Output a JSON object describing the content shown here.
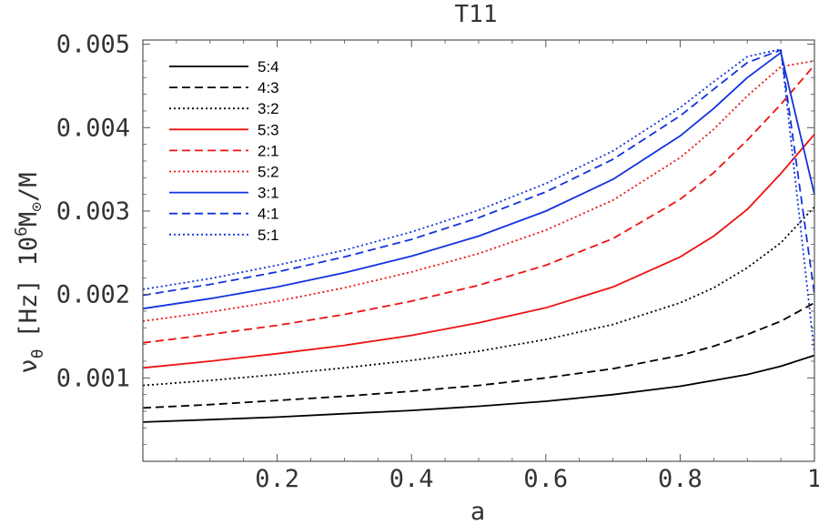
{
  "chart_data": {
    "type": "line",
    "title": "T11",
    "xlabel": "a",
    "ylabel": {
      "nu": "ν",
      "theta": "θ",
      "hz": "[Hz]",
      "ten": "10",
      "six": "6",
      "m": "M",
      "sun": "⊙",
      "over_m": "/M"
    },
    "xlim": [
      0,
      1
    ],
    "ylim": [
      0,
      0.00505
    ],
    "x_ticks": [
      0.2,
      0.4,
      0.6,
      0.8,
      1.0
    ],
    "x_tick_labels": [
      "0.2",
      "0.4",
      "0.6",
      "0.8",
      "1"
    ],
    "y_ticks": [
      0.001,
      0.002,
      0.003,
      0.004,
      0.005
    ],
    "y_tick_labels": [
      "0.001",
      "0.002",
      "0.003",
      "0.004",
      "0.005"
    ],
    "grid": false,
    "legend_position": "top-left",
    "colors": {
      "black": "#000000",
      "red": "#ee1111",
      "blue": "#1133dd",
      "axis": "#555555"
    },
    "x": [
      0,
      0.1,
      0.2,
      0.3,
      0.4,
      0.5,
      0.6,
      0.7,
      0.8,
      0.85,
      0.9,
      0.95,
      1.0
    ],
    "series": [
      {
        "name": "5:4",
        "color": "black",
        "dash": "solid",
        "values": [
          0.00047,
          0.0005,
          0.00053,
          0.00057,
          0.00061,
          0.00066,
          0.00072,
          0.0008,
          0.0009,
          0.00097,
          0.00104,
          0.00114,
          0.00127
        ]
      },
      {
        "name": "4:3",
        "color": "black",
        "dash": "dashed",
        "values": [
          0.00064,
          0.00068,
          0.00073,
          0.00078,
          0.00084,
          0.00091,
          0.001,
          0.00111,
          0.00127,
          0.00138,
          0.00152,
          0.00168,
          0.0019
        ]
      },
      {
        "name": "3:2",
        "color": "black",
        "dash": "dotted",
        "values": [
          0.00091,
          0.00097,
          0.00104,
          0.00112,
          0.00121,
          0.00132,
          0.00146,
          0.00164,
          0.0019,
          0.00208,
          0.00232,
          0.00262,
          0.00305
        ]
      },
      {
        "name": "5:3",
        "color": "red",
        "dash": "solid",
        "values": [
          0.00112,
          0.0012,
          0.00129,
          0.00139,
          0.00151,
          0.00166,
          0.00184,
          0.00209,
          0.00245,
          0.0027,
          0.00302,
          0.00345,
          0.00392
        ]
      },
      {
        "name": "2:1",
        "color": "red",
        "dash": "dashed",
        "values": [
          0.00142,
          0.00152,
          0.00163,
          0.00176,
          0.00192,
          0.00211,
          0.00235,
          0.00267,
          0.00314,
          0.00346,
          0.00385,
          0.00428,
          0.00475
        ]
      },
      {
        "name": "5:2",
        "color": "red",
        "dash": "dotted",
        "values": [
          0.00168,
          0.00179,
          0.00192,
          0.00208,
          0.00227,
          0.00249,
          0.00277,
          0.00313,
          0.00364,
          0.00398,
          0.00438,
          0.00473,
          0.0048
        ]
      },
      {
        "name": "3:1",
        "color": "blue",
        "dash": "solid",
        "values": [
          0.00183,
          0.00195,
          0.00209,
          0.00226,
          0.00246,
          0.0027,
          0.003,
          0.00338,
          0.0039,
          0.00423,
          0.0046,
          0.0049,
          0.0032
        ]
      },
      {
        "name": "4:1",
        "color": "blue",
        "dash": "dashed",
        "values": [
          0.00199,
          0.00212,
          0.00227,
          0.00245,
          0.00266,
          0.00292,
          0.00323,
          0.00362,
          0.00414,
          0.00446,
          0.00478,
          0.00493,
          0.002
        ]
      },
      {
        "name": "5:1",
        "color": "blue",
        "dash": "dotted",
        "values": [
          0.00206,
          0.00219,
          0.00235,
          0.00253,
          0.00275,
          0.00301,
          0.00333,
          0.00372,
          0.00424,
          0.00455,
          0.00485,
          0.00494,
          0.0013
        ]
      }
    ]
  }
}
